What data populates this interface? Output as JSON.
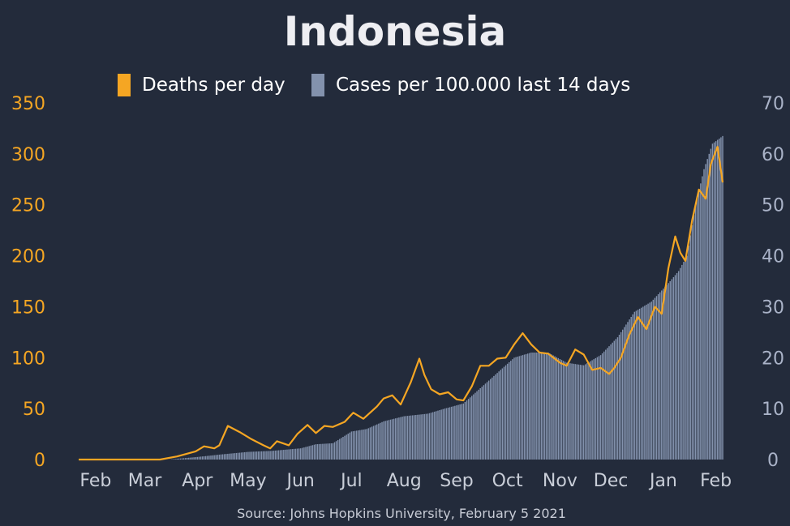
{
  "chart_data": {
    "type": "bar+line",
    "title": "Indonesia",
    "source": "Source: Johns Hopkins University, February 5 2021",
    "legend": {
      "position": "top-center",
      "entries": [
        {
          "label": "Deaths per day",
          "color": "#f5a623"
        },
        {
          "label": "Cases per 100.000 last 14 days",
          "color": "#8392ad"
        }
      ]
    },
    "x_axis": {
      "type": "date",
      "range": [
        "2020-01-22",
        "2021-02-05"
      ],
      "ticks": [
        {
          "label": "Feb",
          "date": "2020-02-01"
        },
        {
          "label": "Mar",
          "date": "2020-03-01"
        },
        {
          "label": "Apr",
          "date": "2020-04-01"
        },
        {
          "label": "May",
          "date": "2020-05-01"
        },
        {
          "label": "Jun",
          "date": "2020-06-01"
        },
        {
          "label": "Jul",
          "date": "2020-07-01"
        },
        {
          "label": "Aug",
          "date": "2020-08-01"
        },
        {
          "label": "Sep",
          "date": "2020-09-01"
        },
        {
          "label": "Oct",
          "date": "2020-10-01"
        },
        {
          "label": "Nov",
          "date": "2020-11-01"
        },
        {
          "label": "Dec",
          "date": "2020-12-01"
        },
        {
          "label": "Jan",
          "date": "2021-01-01"
        },
        {
          "label": "Feb",
          "date": "2021-02-01"
        }
      ]
    },
    "y_left": {
      "range": [
        0,
        350
      ],
      "ticks": [
        0,
        50,
        100,
        150,
        200,
        250,
        300,
        350
      ],
      "color": "#f5a623"
    },
    "y_right": {
      "range": [
        0,
        70
      ],
      "ticks": [
        0,
        10,
        20,
        30,
        40,
        50,
        60,
        70
      ],
      "color": "#aab3c8"
    },
    "grid": false,
    "series": [
      {
        "name": "Deaths per day",
        "axis": "left",
        "kind": "line",
        "color": "#f5a623",
        "points": [
          [
            "2020-01-22",
            0
          ],
          [
            "2020-03-10",
            0
          ],
          [
            "2020-03-20",
            3
          ],
          [
            "2020-03-31",
            8
          ],
          [
            "2020-04-05",
            13
          ],
          [
            "2020-04-11",
            11
          ],
          [
            "2020-04-14",
            14
          ],
          [
            "2020-04-19",
            33
          ],
          [
            "2020-04-26",
            27
          ],
          [
            "2020-05-03",
            20
          ],
          [
            "2020-05-10",
            14
          ],
          [
            "2020-05-14",
            11
          ],
          [
            "2020-05-18",
            18
          ],
          [
            "2020-05-25",
            14
          ],
          [
            "2020-05-30",
            25
          ],
          [
            "2020-06-05",
            34
          ],
          [
            "2020-06-10",
            26
          ],
          [
            "2020-06-15",
            33
          ],
          [
            "2020-06-20",
            32
          ],
          [
            "2020-06-27",
            37
          ],
          [
            "2020-07-02",
            46
          ],
          [
            "2020-07-08",
            40
          ],
          [
            "2020-07-16",
            52
          ],
          [
            "2020-07-20",
            60
          ],
          [
            "2020-07-25",
            63
          ],
          [
            "2020-07-30",
            54
          ],
          [
            "2020-08-05",
            76
          ],
          [
            "2020-08-10",
            99
          ],
          [
            "2020-08-13",
            83
          ],
          [
            "2020-08-17",
            69
          ],
          [
            "2020-08-22",
            64
          ],
          [
            "2020-08-27",
            66
          ],
          [
            "2020-09-01",
            59
          ],
          [
            "2020-09-05",
            58
          ],
          [
            "2020-09-10",
            72
          ],
          [
            "2020-09-15",
            92
          ],
          [
            "2020-09-20",
            92
          ],
          [
            "2020-09-25",
            99
          ],
          [
            "2020-09-30",
            100
          ],
          [
            "2020-10-05",
            113
          ],
          [
            "2020-10-10",
            124
          ],
          [
            "2020-10-15",
            113
          ],
          [
            "2020-10-20",
            105
          ],
          [
            "2020-10-25",
            104
          ],
          [
            "2020-11-01",
            95
          ],
          [
            "2020-11-05",
            92
          ],
          [
            "2020-11-10",
            108
          ],
          [
            "2020-11-15",
            103
          ],
          [
            "2020-11-20",
            88
          ],
          [
            "2020-11-25",
            90
          ],
          [
            "2020-11-30",
            84
          ],
          [
            "2020-12-03",
            90
          ],
          [
            "2020-12-07",
            100
          ],
          [
            "2020-12-12",
            123
          ],
          [
            "2020-12-17",
            140
          ],
          [
            "2020-12-22",
            128
          ],
          [
            "2020-12-27",
            150
          ],
          [
            "2020-12-31",
            143
          ],
          [
            "2021-01-04",
            188
          ],
          [
            "2021-01-08",
            219
          ],
          [
            "2021-01-11",
            203
          ],
          [
            "2021-01-14",
            195
          ],
          [
            "2021-01-18",
            235
          ],
          [
            "2021-01-22",
            265
          ],
          [
            "2021-01-26",
            256
          ],
          [
            "2021-01-29",
            290
          ],
          [
            "2021-02-02",
            307
          ],
          [
            "2021-02-05",
            272
          ]
        ]
      },
      {
        "name": "Cases per 100.000 last 14 days",
        "axis": "right",
        "kind": "bar",
        "color": "#8392ad",
        "points": [
          [
            "2020-01-22",
            0
          ],
          [
            "2020-03-15",
            0
          ],
          [
            "2020-04-01",
            0.5
          ],
          [
            "2020-04-15",
            1.0
          ],
          [
            "2020-05-01",
            1.5
          ],
          [
            "2020-05-15",
            1.7
          ],
          [
            "2020-06-01",
            2.2
          ],
          [
            "2020-06-10",
            3.0
          ],
          [
            "2020-06-20",
            3.2
          ],
          [
            "2020-07-01",
            5.5
          ],
          [
            "2020-07-10",
            6.0
          ],
          [
            "2020-07-20",
            7.5
          ],
          [
            "2020-08-01",
            8.5
          ],
          [
            "2020-08-15",
            9.0
          ],
          [
            "2020-08-25",
            10.0
          ],
          [
            "2020-09-05",
            11.0
          ],
          [
            "2020-09-15",
            14.0
          ],
          [
            "2020-09-25",
            17.0
          ],
          [
            "2020-10-05",
            20.0
          ],
          [
            "2020-10-15",
            21.0
          ],
          [
            "2020-10-25",
            21.0
          ],
          [
            "2020-11-05",
            19.0
          ],
          [
            "2020-11-15",
            18.5
          ],
          [
            "2020-11-25",
            20.5
          ],
          [
            "2020-12-05",
            24.0
          ],
          [
            "2020-12-15",
            29.0
          ],
          [
            "2020-12-25",
            31.0
          ],
          [
            "2021-01-05",
            35.0
          ],
          [
            "2021-01-10",
            37.0
          ],
          [
            "2021-01-15",
            40.0
          ],
          [
            "2021-01-20",
            50.0
          ],
          [
            "2021-01-25",
            57.0
          ],
          [
            "2021-01-30",
            62.0
          ],
          [
            "2021-02-05",
            63.5
          ]
        ]
      }
    ]
  }
}
